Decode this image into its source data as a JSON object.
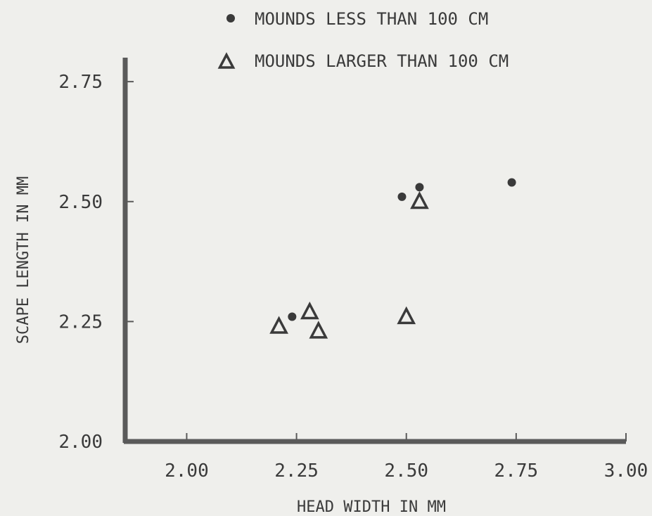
{
  "chart_data": {
    "type": "scatter",
    "title": "",
    "xlabel": "HEAD WIDTH IN MM",
    "ylabel": "SCAPE LENGTH IN MM",
    "xlim": [
      1.86,
      3.0
    ],
    "ylim": [
      2.0,
      2.8
    ],
    "xticks": [
      "2.00",
      "2.25",
      "2.50",
      "2.75",
      "3.00"
    ],
    "yticks": [
      "2.00",
      "2.25",
      "2.50",
      "2.75"
    ],
    "xtick_values": [
      2.0,
      2.25,
      2.5,
      2.75,
      3.0
    ],
    "ytick_values": [
      2.0,
      2.25,
      2.5,
      2.75
    ],
    "grid": false,
    "legend_position": "top",
    "colors": {
      "background": "#efefec",
      "axis": "#5a5a5a",
      "marker": "#3a3a3a",
      "text": "#3a3a3a"
    },
    "series": [
      {
        "name": "MOUNDS LESS THAN 100 CM",
        "marker": "circle",
        "points": [
          {
            "x": 2.24,
            "y": 2.26
          },
          {
            "x": 2.49,
            "y": 2.51
          },
          {
            "x": 2.53,
            "y": 2.53
          },
          {
            "x": 2.74,
            "y": 2.54
          }
        ]
      },
      {
        "name": "MOUNDS LARGER THAN 100 CM",
        "marker": "triangle",
        "points": [
          {
            "x": 2.21,
            "y": 2.24
          },
          {
            "x": 2.28,
            "y": 2.27
          },
          {
            "x": 2.3,
            "y": 2.23
          },
          {
            "x": 2.5,
            "y": 2.26
          },
          {
            "x": 2.53,
            "y": 2.5
          }
        ]
      }
    ]
  }
}
